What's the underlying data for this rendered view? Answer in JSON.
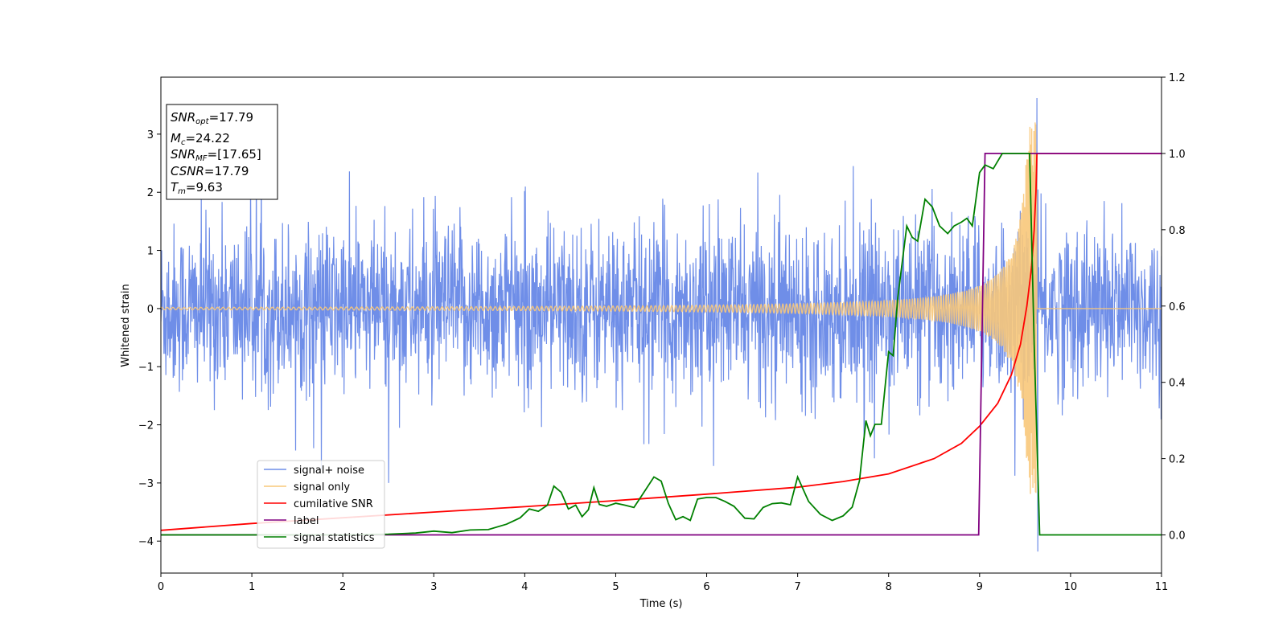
{
  "chart_data": {
    "type": "line",
    "xlabel": "Time (s)",
    "ylabel": "Whitened strain",
    "xlim": [
      0,
      11
    ],
    "ylim": [
      -4.55,
      3.98
    ],
    "y2lim": [
      -0.1,
      1.2
    ],
    "x_ticks": [
      "0",
      "1",
      "2",
      "3",
      "4",
      "5",
      "6",
      "7",
      "8",
      "9",
      "10",
      "11"
    ],
    "y_ticks": [
      "3",
      "2",
      "1",
      "0",
      "−1",
      "−2",
      "−3",
      "−4"
    ],
    "y_tick_values": [
      3,
      2,
      1,
      0,
      -1,
      -2,
      -3,
      -4
    ],
    "y2_ticks": [
      "1.2",
      "1.0",
      "0.8",
      "0.6",
      "0.4",
      "0.2",
      "0.0"
    ],
    "y2_tick_values": [
      1.2,
      1.0,
      0.8,
      0.6,
      0.4,
      0.2,
      0.0
    ],
    "legend_position": "lower-left",
    "grid": false,
    "annotation": {
      "snr_opt": "=17.79",
      "mc": "=24.22",
      "snr_mf": "=[17.65]",
      "csnr": "=17.79",
      "tm": "=9.63"
    },
    "series": [
      {
        "name": "signal+ noise",
        "color": "#6f8ee8",
        "axis": "left",
        "description_values": {
          "mean": 0,
          "std": 0.72,
          "t_end": 11,
          "spike_max_time": 9.63,
          "spike_max_value": 3.62,
          "spike_min_value": -4.18
        }
      },
      {
        "name": "signal only",
        "color": "#f8c87a",
        "axis": "left",
        "description_values": {
          "chirp_start_amplitude": 0.02,
          "peak_amplitude": 3.2,
          "merger_time": 9.63
        }
      },
      {
        "name": "cumilative SNR",
        "color": "#ff0000",
        "axis": "right",
        "x": [
          0,
          1,
          2,
          3,
          4,
          5,
          6,
          7,
          7.5,
          8,
          8.5,
          8.8,
          9.0,
          9.2,
          9.35,
          9.45,
          9.52,
          9.57,
          9.6,
          9.62,
          9.63,
          10,
          11
        ],
        "y": [
          0.012,
          0.03,
          0.045,
          0.06,
          0.074,
          0.09,
          0.107,
          0.125,
          0.14,
          0.16,
          0.2,
          0.24,
          0.285,
          0.345,
          0.42,
          0.5,
          0.6,
          0.7,
          0.8,
          0.9,
          1.0,
          1.0,
          1.0
        ]
      },
      {
        "name": "label",
        "color": "#800080",
        "axis": "right",
        "x": [
          0,
          8.99,
          9.06,
          9.63,
          9.64,
          11
        ],
        "y": [
          0,
          0,
          1,
          1,
          1,
          1
        ]
      },
      {
        "name": "signal statistics",
        "color": "#008000",
        "axis": "right",
        "x": [
          0,
          1,
          2,
          2.5,
          2.8,
          3.0,
          3.2,
          3.4,
          3.6,
          3.8,
          3.95,
          4.05,
          4.15,
          4.25,
          4.32,
          4.4,
          4.48,
          4.56,
          4.63,
          4.7,
          4.76,
          4.82,
          4.9,
          5.0,
          5.1,
          5.2,
          5.3,
          5.42,
          5.5,
          5.58,
          5.66,
          5.74,
          5.82,
          5.9,
          6.0,
          6.1,
          6.2,
          6.3,
          6.42,
          6.52,
          6.62,
          6.72,
          6.82,
          6.92,
          7.0,
          7.12,
          7.25,
          7.38,
          7.5,
          7.6,
          7.68,
          7.75,
          7.8,
          7.85,
          7.92,
          8.0,
          8.05,
          8.1,
          8.2,
          8.26,
          8.32,
          8.4,
          8.48,
          8.56,
          8.65,
          8.72,
          8.8,
          8.86,
          8.92,
          9.0,
          9.06,
          9.15,
          9.25,
          9.35,
          9.45,
          9.55,
          9.6,
          9.66,
          9.7,
          10,
          11
        ],
        "y": [
          0,
          0,
          0,
          0.002,
          0.005,
          0.01,
          0.006,
          0.013,
          0.014,
          0.028,
          0.045,
          0.068,
          0.062,
          0.078,
          0.128,
          0.112,
          0.068,
          0.078,
          0.048,
          0.066,
          0.124,
          0.08,
          0.075,
          0.083,
          0.078,
          0.072,
          0.108,
          0.152,
          0.141,
          0.082,
          0.04,
          0.048,
          0.038,
          0.094,
          0.098,
          0.098,
          0.088,
          0.075,
          0.044,
          0.042,
          0.072,
          0.082,
          0.084,
          0.079,
          0.152,
          0.088,
          0.054,
          0.038,
          0.05,
          0.073,
          0.142,
          0.3,
          0.26,
          0.29,
          0.29,
          0.48,
          0.47,
          0.62,
          0.81,
          0.78,
          0.77,
          0.88,
          0.86,
          0.81,
          0.79,
          0.81,
          0.82,
          0.83,
          0.81,
          0.95,
          0.97,
          0.96,
          1.0,
          1.0,
          1.0,
          1.0,
          0.5,
          0,
          0,
          0,
          0
        ]
      }
    ]
  }
}
